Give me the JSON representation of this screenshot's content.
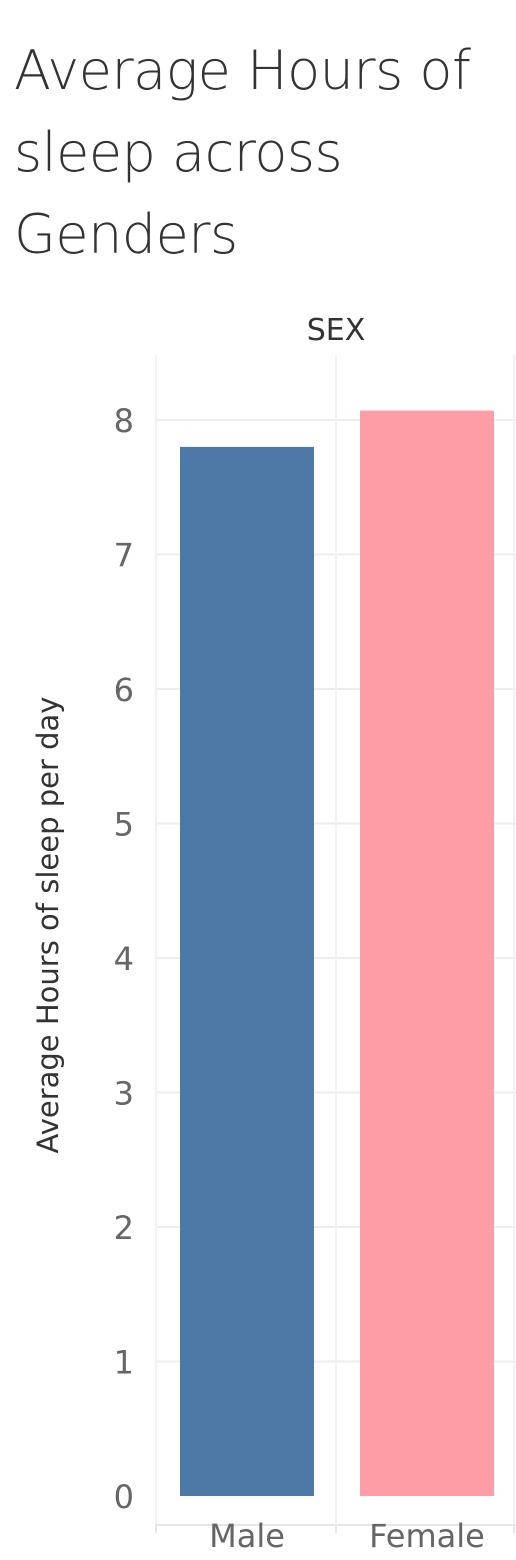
{
  "chart_data": {
    "type": "bar",
    "title": "Average Hours of sleep across Genders",
    "column_header": "SEX",
    "categories": [
      "Male",
      "Female"
    ],
    "values": [
      7.8,
      8.07
    ],
    "colors": [
      "#4e79a7",
      "#ff9da7"
    ],
    "ylabel": "Average Hours of sleep per day",
    "xlabel": "",
    "ylim": [
      0,
      8.5
    ],
    "yticks": [
      "0",
      "1",
      "2",
      "3",
      "4",
      "5",
      "6",
      "7",
      "8"
    ],
    "grid": true,
    "legend": "none"
  }
}
